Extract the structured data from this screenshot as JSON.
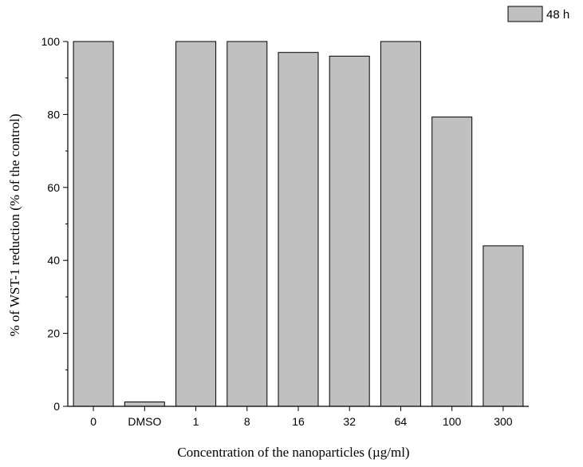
{
  "chart_data": {
    "type": "bar",
    "categories": [
      "0",
      "DMSO",
      "1",
      "8",
      "16",
      "32",
      "64",
      "100",
      "300"
    ],
    "series": [
      {
        "name": "48 h",
        "values": [
          100,
          1.2,
          100,
          100,
          97,
          96,
          100,
          79.3,
          44
        ]
      }
    ],
    "xlabel": "Concentration of the nanoparticles (µg/ml)",
    "ylabel": "% of WST-1 reduction (% of the control)",
    "ylim": [
      0,
      100
    ],
    "yticks": [
      0,
      20,
      40,
      60,
      80,
      100
    ],
    "grid": false,
    "legend_position": "top-right",
    "colors": {
      "bar_fill": "#c0c0c0",
      "bar_stroke": "#000000",
      "axis": "#000000"
    }
  }
}
